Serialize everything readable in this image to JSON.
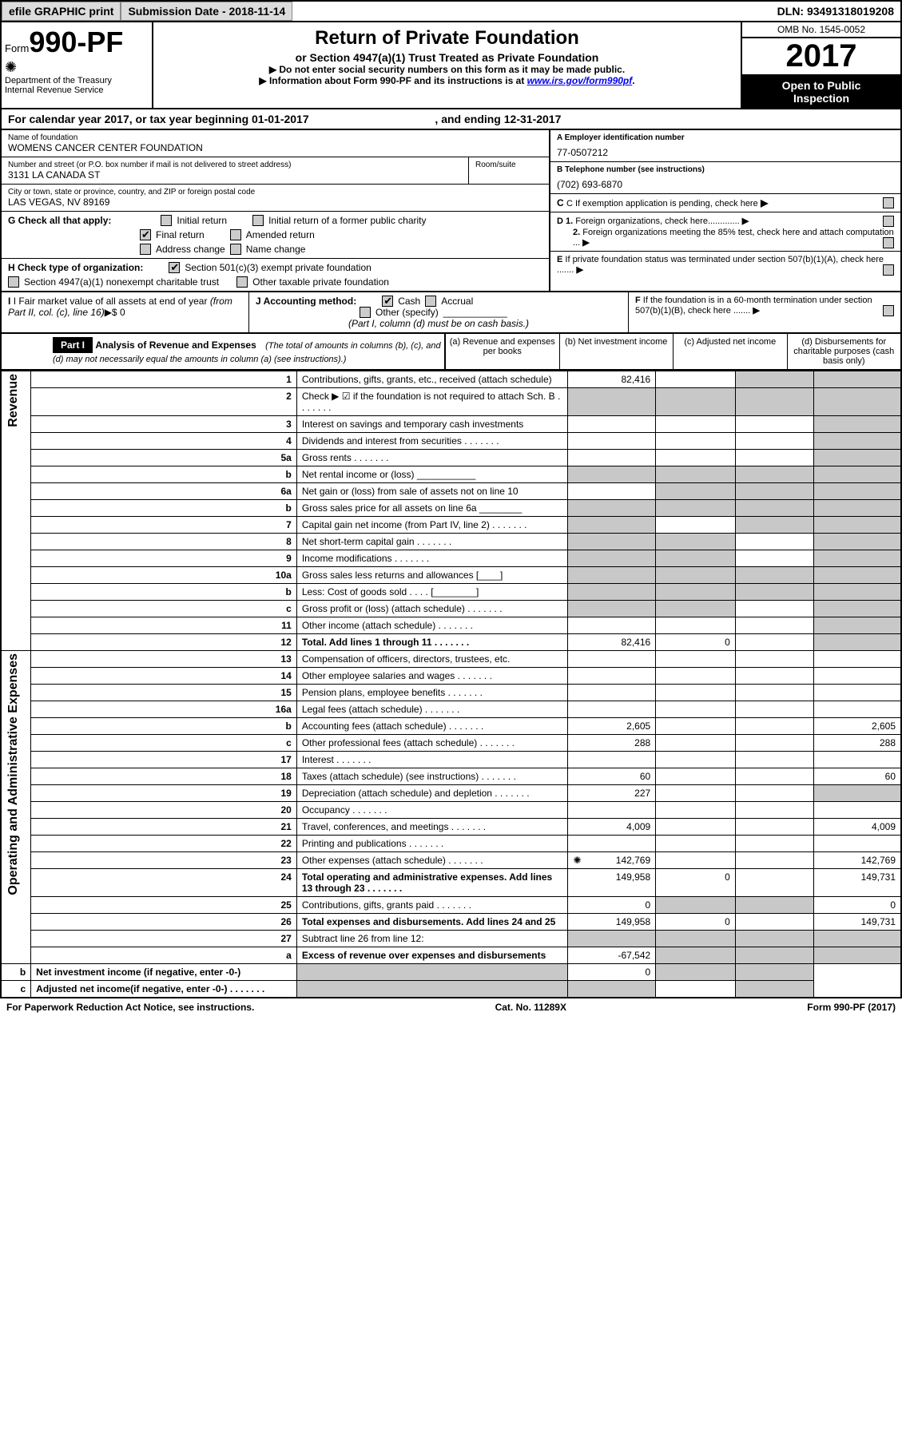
{
  "top": {
    "efile": "efile GRAPHIC print",
    "subdate_label": "Submission Date - ",
    "subdate": "2018-11-14",
    "dln_label": "DLN: ",
    "dln": "93491318019208"
  },
  "header": {
    "form_prefix": "Form",
    "form_num": "990-PF",
    "dept1": "Department of the Treasury",
    "dept2": "Internal Revenue Service",
    "title": "Return of Private Foundation",
    "subtitle": "or Section 4947(a)(1) Trust Treated as Private Foundation",
    "note1": "▶ Do not enter social security numbers on this form as it may be made public.",
    "note2_prefix": "▶ Information about Form 990-PF and its instructions is at ",
    "note2_link": "www.irs.gov/form990pf",
    "omb": "OMB No. 1545-0052",
    "year": "2017",
    "public1": "Open to Public",
    "public2": "Inspection"
  },
  "cal": {
    "prefix": "For calendar year 2017, or tax year beginning ",
    "begin": "01-01-2017",
    "mid": " , and ending ",
    "end": "12-31-2017"
  },
  "name": {
    "label": "Name of foundation",
    "value": "WOMENS CANCER CENTER FOUNDATION"
  },
  "ein": {
    "label": "A Employer identification number",
    "value": "77-0507212"
  },
  "addr": {
    "label": "Number and street (or P.O. box number if mail is not delivered to street address)",
    "room": "Room/suite",
    "value": "3131 LA CANADA ST"
  },
  "tel": {
    "label": "B Telephone number (see instructions)",
    "value": "(702) 693-6870"
  },
  "city": {
    "label": "City or town, state or province, country, and ZIP or foreign postal code",
    "value": "LAS VEGAS, NV  89169"
  },
  "c": "C If exemption application is pending, check here",
  "g": {
    "label": "G Check all that apply:",
    "o1": "Initial return",
    "o2": "Initial return of a former public charity",
    "o3": "Final return",
    "o4": "Amended return",
    "o5": "Address change",
    "o6": "Name change"
  },
  "d": {
    "d1": "D 1. Foreign organizations, check here.............",
    "d2": "2. Foreign organizations meeting the 85% test, check here and attach computation ..."
  },
  "h": {
    "label": "H Check type of organization:",
    "o1": "Section 501(c)(3) exempt private foundation",
    "o2": "Section 4947(a)(1) nonexempt charitable trust",
    "o3": "Other taxable private foundation"
  },
  "e": "E If private foundation status was terminated under section 507(b)(1)(A), check here .......",
  "i": {
    "label": "I Fair market value of all assets at end of year ",
    "ital": "(from Part II, col. (c), line 16)",
    "val": "▶$  0"
  },
  "j": {
    "label": "J Accounting method:",
    "o1": "Cash",
    "o2": "Accrual",
    "o3": "Other (specify)",
    "note": "(Part I, column (d) must be on cash basis.)"
  },
  "f": "F If the foundation is in a 60-month termination under section 507(b)(1)(B), check here .......",
  "part1": {
    "tag": "Part I",
    "title": "Analysis of Revenue and Expenses ",
    "note": "(The total of amounts in columns (b), (c), and (d) may not necessarily equal the amounts in column (a) (see instructions).)",
    "cols": {
      "a": "(a)   Revenue and expenses per books",
      "b": "(b)   Net investment income",
      "c": "(c)   Adjusted net income",
      "d": "(d)   Disbursements for charitable purposes (cash basis only)"
    }
  },
  "side": {
    "rev": "Revenue",
    "exp": "Operating and Administrative Expenses"
  },
  "rows": [
    {
      "n": "1",
      "t": "Contributions, gifts, grants, etc., received (attach schedule)",
      "a": "82,416",
      "b": "",
      "c": "g",
      "d": "g"
    },
    {
      "n": "2",
      "t": "Check ▶ ☑ if the foundation is not required to attach Sch. B",
      "dots": true,
      "a": "g",
      "b": "g",
      "c": "g",
      "d": "g"
    },
    {
      "n": "3",
      "t": "Interest on savings and temporary cash investments",
      "a": "",
      "b": "",
      "c": "",
      "d": "g"
    },
    {
      "n": "4",
      "t": "Dividends and interest from securities",
      "dots": true,
      "a": "",
      "b": "",
      "c": "",
      "d": "g"
    },
    {
      "n": "5a",
      "t": "Gross rents",
      "dots": true,
      "a": "",
      "b": "",
      "c": "",
      "d": "g"
    },
    {
      "n": "b",
      "t": "Net rental income or (loss)  ___________",
      "a": "g",
      "b": "g",
      "c": "g",
      "d": "g"
    },
    {
      "n": "6a",
      "t": "Net gain or (loss) from sale of assets not on line 10",
      "a": "",
      "b": "g",
      "c": "g",
      "d": "g"
    },
    {
      "n": "b",
      "t": "Gross sales price for all assets on line 6a ________",
      "a": "g",
      "b": "g",
      "c": "g",
      "d": "g"
    },
    {
      "n": "7",
      "t": "Capital gain net income (from Part IV, line 2)",
      "dots": true,
      "a": "g",
      "b": "",
      "c": "g",
      "d": "g"
    },
    {
      "n": "8",
      "t": "Net short-term capital gain",
      "dots": true,
      "a": "g",
      "b": "g",
      "c": "",
      "d": "g"
    },
    {
      "n": "9",
      "t": "Income modifications",
      "dots": true,
      "a": "g",
      "b": "g",
      "c": "",
      "d": "g"
    },
    {
      "n": "10a",
      "t": "Gross sales less returns and allowances  [____]",
      "a": "g",
      "b": "g",
      "c": "g",
      "d": "g"
    },
    {
      "n": "b",
      "t": "Less: Cost of goods sold     .  .  .  .  [________]",
      "a": "g",
      "b": "g",
      "c": "g",
      "d": "g"
    },
    {
      "n": "c",
      "t": "Gross profit or (loss) (attach schedule)",
      "dots": true,
      "a": "g",
      "b": "g",
      "c": "",
      "d": "g"
    },
    {
      "n": "11",
      "t": "Other income (attach schedule)",
      "dots": true,
      "a": "",
      "b": "",
      "c": "",
      "d": "g"
    },
    {
      "n": "12",
      "t": "Total. Add lines 1 through 11",
      "bold": true,
      "dots": true,
      "a": "82,416",
      "b": "0",
      "c": "",
      "d": "g"
    },
    {
      "n": "13",
      "t": "Compensation of officers, directors, trustees, etc.",
      "a": "",
      "b": "",
      "c": "",
      "d": ""
    },
    {
      "n": "14",
      "t": "Other employee salaries and wages",
      "dots": true,
      "a": "",
      "b": "",
      "c": "",
      "d": ""
    },
    {
      "n": "15",
      "t": "Pension plans, employee benefits",
      "dots": true,
      "a": "",
      "b": "",
      "c": "",
      "d": ""
    },
    {
      "n": "16a",
      "t": "Legal fees (attach schedule)",
      "dots": true,
      "a": "",
      "b": "",
      "c": "",
      "d": ""
    },
    {
      "n": "b",
      "t": "Accounting fees (attach schedule)",
      "dots": true,
      "a": "2,605",
      "b": "",
      "c": "",
      "d": "2,605"
    },
    {
      "n": "c",
      "t": "Other professional fees (attach schedule)",
      "dots": true,
      "a": "288",
      "b": "",
      "c": "",
      "d": "288"
    },
    {
      "n": "17",
      "t": "Interest",
      "dots": true,
      "a": "",
      "b": "",
      "c": "",
      "d": ""
    },
    {
      "n": "18",
      "t": "Taxes (attach schedule) (see instructions)",
      "dots": true,
      "a": "60",
      "b": "",
      "c": "",
      "d": "60"
    },
    {
      "n": "19",
      "t": "Depreciation (attach schedule) and depletion",
      "dots": true,
      "a": "227",
      "b": "",
      "c": "",
      "d": "g"
    },
    {
      "n": "20",
      "t": "Occupancy",
      "dots": true,
      "a": "",
      "b": "",
      "c": "",
      "d": ""
    },
    {
      "n": "21",
      "t": "Travel, conferences, and meetings",
      "dots": true,
      "a": "4,009",
      "b": "",
      "c": "",
      "d": "4,009"
    },
    {
      "n": "22",
      "t": "Printing and publications",
      "dots": true,
      "a": "",
      "b": "",
      "c": "",
      "d": ""
    },
    {
      "n": "23",
      "t": "Other expenses (attach schedule)",
      "dots": true,
      "icon": true,
      "a": "142,769",
      "b": "",
      "c": "",
      "d": "142,769"
    },
    {
      "n": "24",
      "t": "Total operating and administrative expenses. Add lines 13 through 23",
      "bold": true,
      "dots": true,
      "a": "149,958",
      "b": "0",
      "c": "",
      "d": "149,731"
    },
    {
      "n": "25",
      "t": "Contributions, gifts, grants paid",
      "dots": true,
      "a": "0",
      "b": "g",
      "c": "g",
      "d": "0"
    },
    {
      "n": "26",
      "t": "Total expenses and disbursements. Add lines 24 and 25",
      "bold": true,
      "a": "149,958",
      "b": "0",
      "c": "",
      "d": "149,731"
    },
    {
      "n": "27",
      "t": "Subtract line 26 from line 12:",
      "a": "g",
      "b": "g",
      "c": "g",
      "d": "g"
    },
    {
      "n": "a",
      "t": "Excess of revenue over expenses and disbursements",
      "bold": true,
      "a": "-67,542",
      "b": "g",
      "c": "g",
      "d": "g"
    },
    {
      "n": "b",
      "t": "Net investment income (if negative, enter -0-)",
      "bold": true,
      "a": "g",
      "b": "0",
      "c": "g",
      "d": "g"
    },
    {
      "n": "c",
      "t": "Adjusted net income(if negative, enter -0-)",
      "bold": true,
      "dots": true,
      "a": "g",
      "b": "g",
      "c": "",
      "d": "g"
    }
  ],
  "footer": {
    "left": "For Paperwork Reduction Act Notice, see instructions.",
    "mid": "Cat. No. 11289X",
    "right": "Form 990-PF (2017)"
  }
}
